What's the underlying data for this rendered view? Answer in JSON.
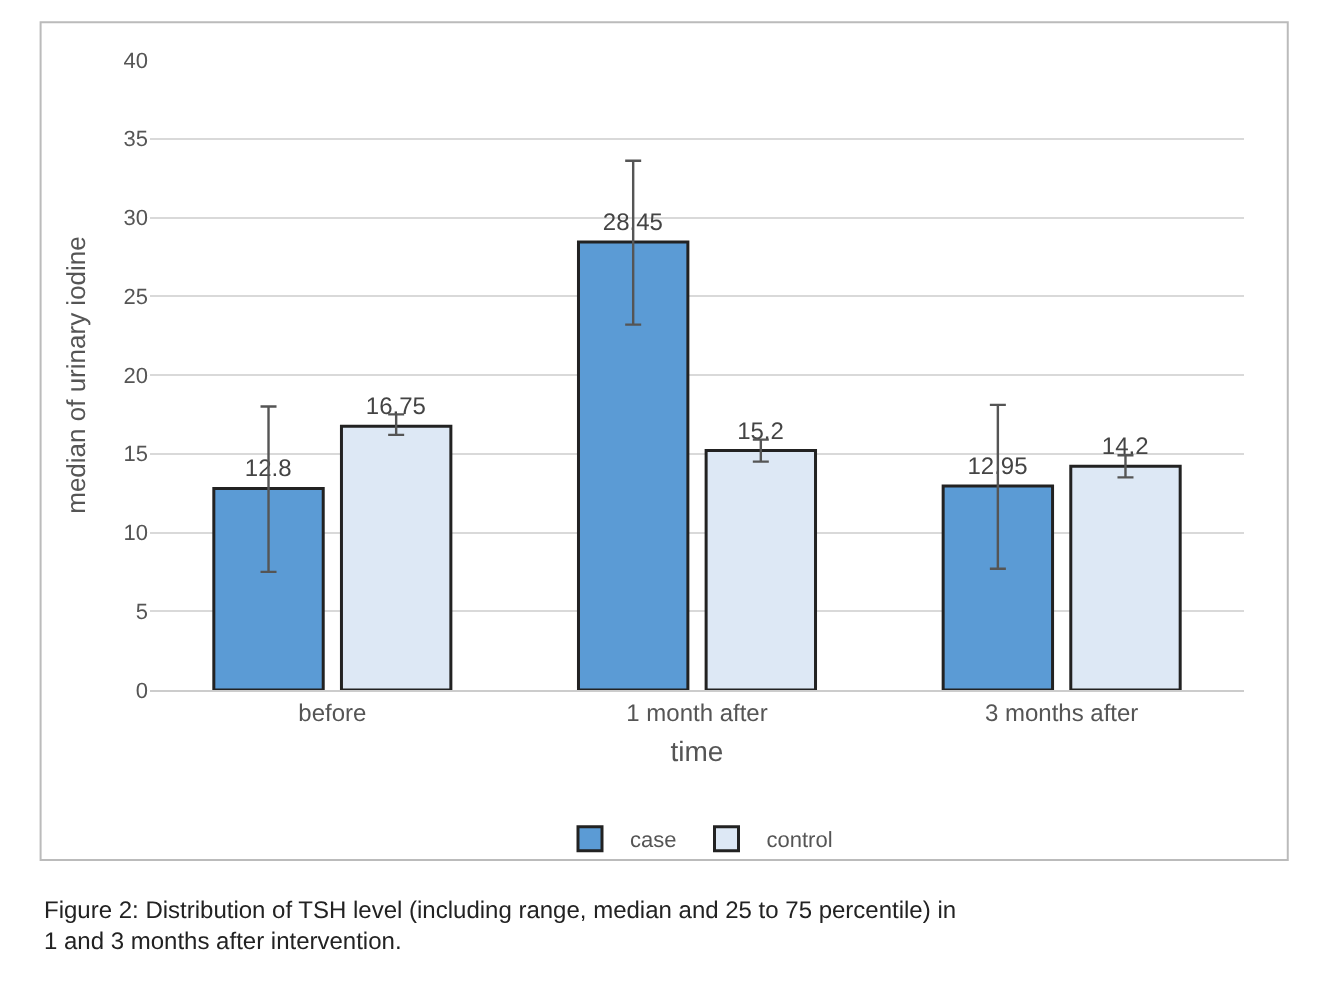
{
  "chart_data": {
    "type": "bar",
    "xlabel": "time",
    "ylabel": "median of urinary iodine",
    "categories": [
      "before",
      "1 month after",
      "3 months after"
    ],
    "series": [
      {
        "name": "case",
        "color": "#5b9bd5",
        "values": [
          12.8,
          28.45,
          12.95
        ],
        "errors": [
          [
            7.5,
            18
          ],
          [
            23.2,
            33.6
          ],
          [
            7.7,
            18.1
          ]
        ]
      },
      {
        "name": "control",
        "color": "#dde8f5",
        "values": [
          16.75,
          15.2,
          14.2
        ],
        "errors": [
          [
            16.2,
            17.5
          ],
          [
            14.5,
            15.9
          ],
          [
            13.5,
            14.9
          ]
        ]
      }
    ],
    "ylim": [
      0,
      40
    ],
    "yticks": [
      0,
      5,
      10,
      15,
      20,
      25,
      30,
      35,
      40
    ],
    "grid": "y",
    "legend": "bottom",
    "data_labels": true,
    "annotations": [
      "Figure 2: Distribution of TSH level (including range, median and 25 to 75 percentile) in 1 and 3 months after intervention."
    ]
  }
}
